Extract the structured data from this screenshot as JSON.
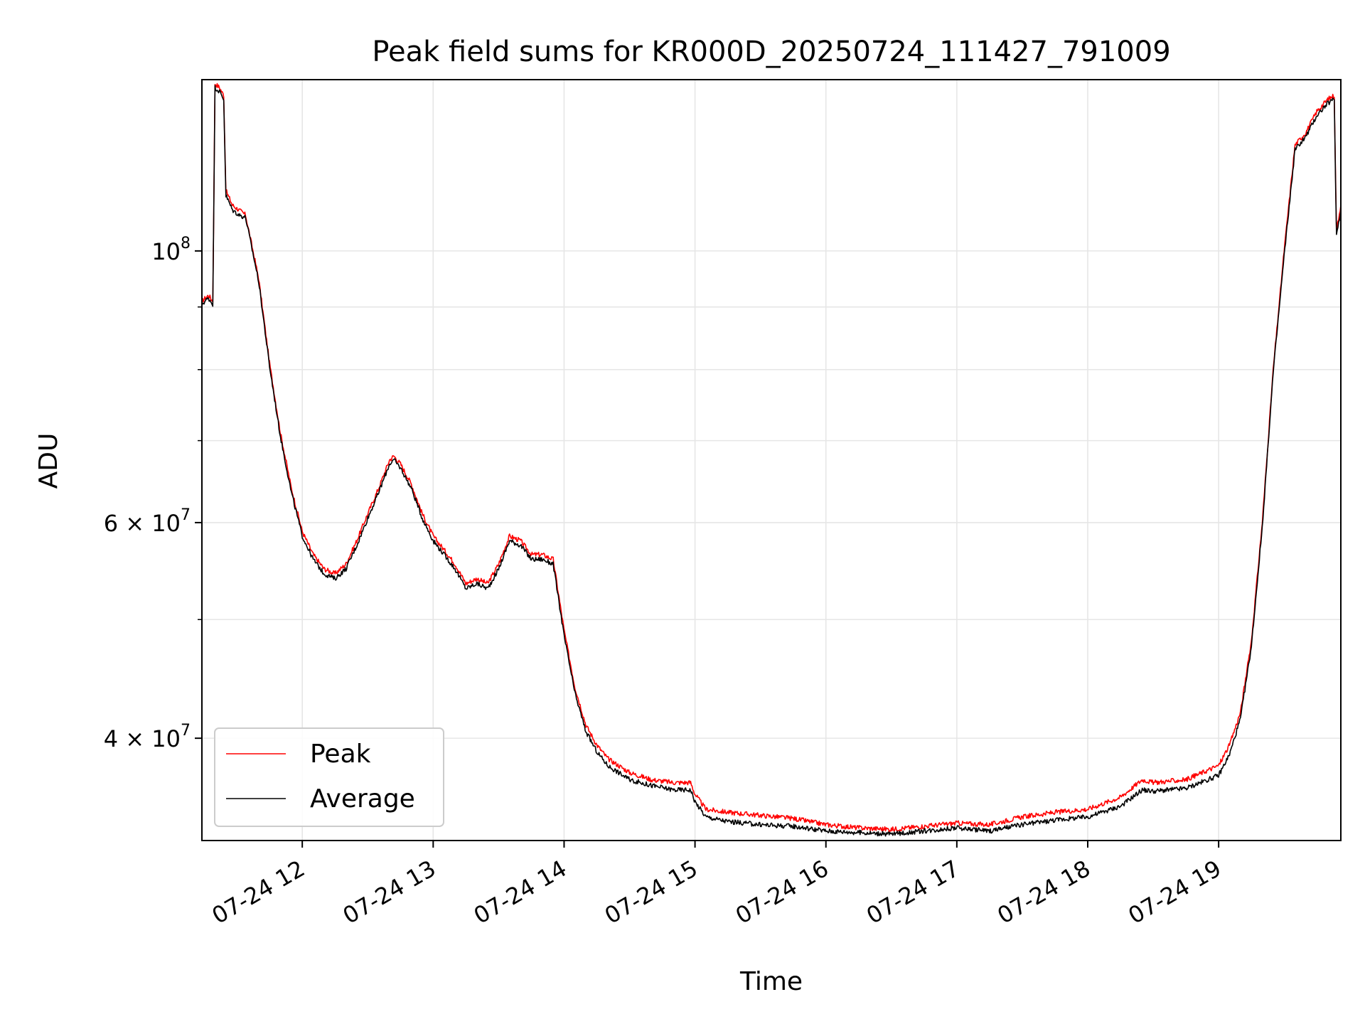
{
  "chart_data": {
    "type": "line",
    "title": "Peak field sums for KR000D_20250724_111427_791009",
    "xlabel": "Time",
    "ylabel": "ADU",
    "x_range": [
      "2025-07-24 11:14",
      "2025-07-24 19:56"
    ],
    "ylim": [
      33000000,
      138000000
    ],
    "y_scale": "log",
    "grid": true,
    "legend_position": "lower-left",
    "x_ticks": [
      "07-24 12",
      "07-24 13",
      "07-24 14",
      "07-24 15",
      "07-24 16",
      "07-24 17",
      "07-24 18",
      "07-24 19"
    ],
    "y_ticks": [
      {
        "value": 40000000,
        "label_base": "4 × 10",
        "label_exp": "7"
      },
      {
        "value": 60000000,
        "label_base": "6 × 10",
        "label_exp": "7"
      },
      {
        "value": 100000000,
        "label_base": "10",
        "label_exp": "8"
      }
    ],
    "series": [
      {
        "name": "Peak",
        "color": "#ff0000",
        "points": [
          [
            "11:14",
            91000000
          ],
          [
            "11:17",
            92000000
          ],
          [
            "11:19",
            91000000
          ],
          [
            "11:20",
            137000000
          ],
          [
            "11:22",
            136000000
          ],
          [
            "11:24",
            134000000
          ],
          [
            "11:25",
            112000000
          ],
          [
            "11:28",
            109000000
          ],
          [
            "11:31",
            108000000
          ],
          [
            "11:34",
            107000000
          ],
          [
            "11:40",
            95000000
          ],
          [
            "11:45",
            81000000
          ],
          [
            "11:50",
            71000000
          ],
          [
            "11:55",
            64000000
          ],
          [
            "12:00",
            59000000
          ],
          [
            "12:05",
            56500000
          ],
          [
            "12:10",
            55000000
          ],
          [
            "12:15",
            54500000
          ],
          [
            "12:20",
            55500000
          ],
          [
            "12:25",
            58000000
          ],
          [
            "12:30",
            61000000
          ],
          [
            "12:35",
            64000000
          ],
          [
            "12:40",
            67500000
          ],
          [
            "12:42",
            68000000
          ],
          [
            "12:45",
            67000000
          ],
          [
            "12:50",
            64500000
          ],
          [
            "12:55",
            61000000
          ],
          [
            "13:00",
            58500000
          ],
          [
            "13:05",
            57000000
          ],
          [
            "13:10",
            55500000
          ],
          [
            "13:15",
            53500000
          ],
          [
            "13:20",
            54000000
          ],
          [
            "13:25",
            53500000
          ],
          [
            "13:30",
            55500000
          ],
          [
            "13:35",
            58500000
          ],
          [
            "13:40",
            58000000
          ],
          [
            "13:45",
            56500000
          ],
          [
            "13:50",
            56500000
          ],
          [
            "13:55",
            56000000
          ],
          [
            "14:00",
            49000000
          ],
          [
            "14:05",
            44000000
          ],
          [
            "14:10",
            41000000
          ],
          [
            "14:15",
            39500000
          ],
          [
            "14:20",
            38500000
          ],
          [
            "14:30",
            37500000
          ],
          [
            "14:40",
            37000000
          ],
          [
            "14:50",
            36800000
          ],
          [
            "14:58",
            36800000
          ],
          [
            "15:00",
            36000000
          ],
          [
            "15:05",
            35000000
          ],
          [
            "15:15",
            34800000
          ],
          [
            "15:30",
            34600000
          ],
          [
            "15:45",
            34400000
          ],
          [
            "16:00",
            34000000
          ],
          [
            "16:15",
            33800000
          ],
          [
            "16:30",
            33700000
          ],
          [
            "16:45",
            33900000
          ],
          [
            "17:00",
            34100000
          ],
          [
            "17:15",
            34000000
          ],
          [
            "17:30",
            34500000
          ],
          [
            "17:45",
            34800000
          ],
          [
            "18:00",
            35000000
          ],
          [
            "18:15",
            35800000
          ],
          [
            "18:25",
            37000000
          ],
          [
            "18:30",
            36800000
          ],
          [
            "18:45",
            37000000
          ],
          [
            "19:00",
            38000000
          ],
          [
            "19:05",
            39500000
          ],
          [
            "19:10",
            42000000
          ],
          [
            "19:15",
            48000000
          ],
          [
            "19:20",
            60000000
          ],
          [
            "19:25",
            80000000
          ],
          [
            "19:30",
            100000000
          ],
          [
            "19:35",
            122000000
          ],
          [
            "19:40",
            125000000
          ],
          [
            "19:45",
            130000000
          ],
          [
            "19:50",
            133000000
          ],
          [
            "19:53",
            134000000
          ],
          [
            "19:54",
            104000000
          ],
          [
            "19:56",
            109000000
          ]
        ]
      },
      {
        "name": "Average",
        "color": "#000000",
        "points": [
          [
            "11:14",
            90500000
          ],
          [
            "11:17",
            91500000
          ],
          [
            "11:19",
            90500000
          ],
          [
            "11:20",
            136000000
          ],
          [
            "11:22",
            135000000
          ],
          [
            "11:24",
            133000000
          ],
          [
            "11:25",
            111000000
          ],
          [
            "11:28",
            108000000
          ],
          [
            "11:31",
            107000000
          ],
          [
            "11:34",
            106500000
          ],
          [
            "11:40",
            94500000
          ],
          [
            "11:45",
            80500000
          ],
          [
            "11:50",
            70500000
          ],
          [
            "11:55",
            63500000
          ],
          [
            "12:00",
            58500000
          ],
          [
            "12:05",
            56000000
          ],
          [
            "12:10",
            54500000
          ],
          [
            "12:15",
            54000000
          ],
          [
            "12:20",
            55000000
          ],
          [
            "12:25",
            57500000
          ],
          [
            "12:30",
            60500000
          ],
          [
            "12:35",
            63500000
          ],
          [
            "12:40",
            67000000
          ],
          [
            "12:42",
            67500000
          ],
          [
            "12:45",
            66500000
          ],
          [
            "12:50",
            64000000
          ],
          [
            "12:55",
            60500000
          ],
          [
            "13:00",
            58000000
          ],
          [
            "13:05",
            56500000
          ],
          [
            "13:10",
            55000000
          ],
          [
            "13:15",
            53000000
          ],
          [
            "13:20",
            53500000
          ],
          [
            "13:25",
            53000000
          ],
          [
            "13:30",
            55000000
          ],
          [
            "13:35",
            58000000
          ],
          [
            "13:40",
            57500000
          ],
          [
            "13:45",
            56000000
          ],
          [
            "13:50",
            56000000
          ],
          [
            "13:55",
            55500000
          ],
          [
            "14:00",
            48500000
          ],
          [
            "14:05",
            43500000
          ],
          [
            "14:10",
            40500000
          ],
          [
            "14:15",
            39000000
          ],
          [
            "14:20",
            38000000
          ],
          [
            "14:30",
            37000000
          ],
          [
            "14:40",
            36600000
          ],
          [
            "14:50",
            36300000
          ],
          [
            "14:58",
            36300000
          ],
          [
            "15:00",
            35500000
          ],
          [
            "15:05",
            34500000
          ],
          [
            "15:15",
            34200000
          ],
          [
            "15:30",
            34000000
          ],
          [
            "15:45",
            33900000
          ],
          [
            "16:00",
            33600000
          ],
          [
            "16:15",
            33500000
          ],
          [
            "16:30",
            33400000
          ],
          [
            "16:45",
            33600000
          ],
          [
            "17:00",
            33800000
          ],
          [
            "17:15",
            33600000
          ],
          [
            "17:30",
            34000000
          ],
          [
            "17:45",
            34300000
          ],
          [
            "18:00",
            34500000
          ],
          [
            "18:15",
            35200000
          ],
          [
            "18:25",
            36300000
          ],
          [
            "18:30",
            36200000
          ],
          [
            "18:45",
            36400000
          ],
          [
            "19:00",
            37300000
          ],
          [
            "19:05",
            38800000
          ],
          [
            "19:10",
            41500000
          ],
          [
            "19:15",
            47500000
          ],
          [
            "19:20",
            59500000
          ],
          [
            "19:25",
            79500000
          ],
          [
            "19:30",
            99000000
          ],
          [
            "19:35",
            121000000
          ],
          [
            "19:40",
            124000000
          ],
          [
            "19:45",
            129000000
          ],
          [
            "19:50",
            132000000
          ],
          [
            "19:53",
            133000000
          ],
          [
            "19:54",
            103000000
          ],
          [
            "19:56",
            108000000
          ]
        ]
      }
    ]
  }
}
